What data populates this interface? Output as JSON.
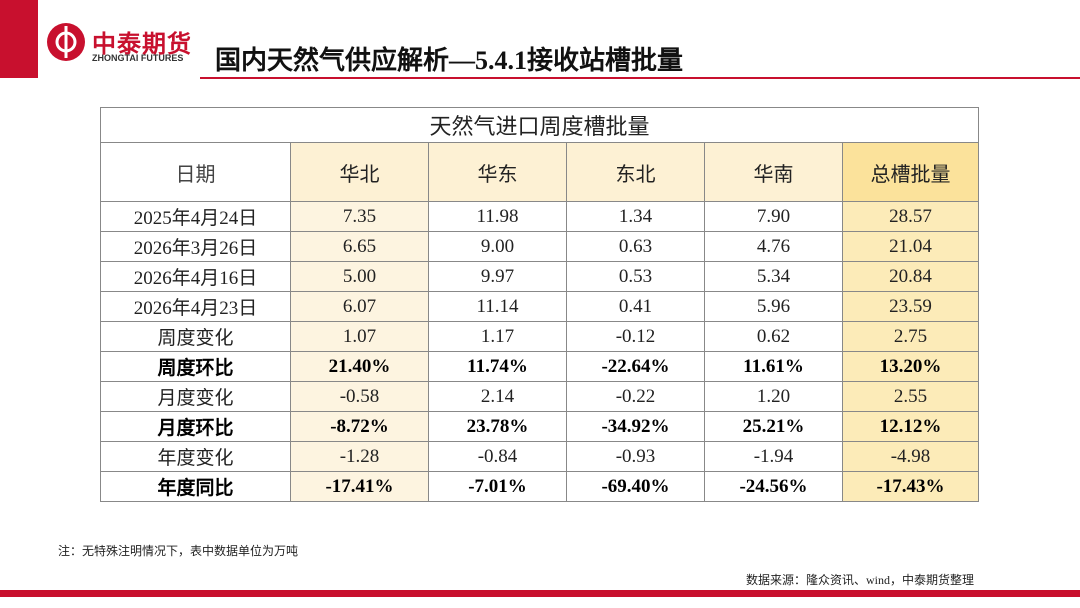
{
  "header": {
    "logo_name": "中泰期货",
    "logo_sub": "ZHONGTAI FUTURES",
    "title": "国内天然气供应解析—5.4.1接收站槽批量"
  },
  "table": {
    "title": "天然气进口周度槽批量",
    "columns": [
      "日期",
      "华北",
      "华东",
      "东北",
      "华南",
      "总槽批量"
    ],
    "rows": [
      [
        "2025年4月24日",
        "7.35",
        "11.98",
        "1.34",
        "7.90",
        "28.57"
      ],
      [
        "2026年3月26日",
        "6.65",
        "9.00",
        "0.63",
        "4.76",
        "21.04"
      ],
      [
        "2026年4月16日",
        "5.00",
        "9.97",
        "0.53",
        "5.34",
        "20.84"
      ],
      [
        "2026年4月23日",
        "6.07",
        "11.14",
        "0.41",
        "5.96",
        "23.59"
      ],
      [
        "周度变化",
        "1.07",
        "1.17",
        "-0.12",
        "0.62",
        "2.75"
      ],
      [
        "周度环比",
        "21.40%",
        "11.74%",
        "-22.64%",
        "11.61%",
        "13.20%"
      ],
      [
        "月度变化",
        "-0.58",
        "2.14",
        "-0.22",
        "1.20",
        "2.55"
      ],
      [
        "月度环比",
        "-8.72%",
        "23.78%",
        "-34.92%",
        "25.21%",
        "12.12%"
      ],
      [
        "年度变化",
        "-1.28",
        "-0.84",
        "-0.93",
        "-1.94",
        "-4.98"
      ],
      [
        "年度同比",
        "-17.41%",
        "-7.01%",
        "-69.40%",
        "-24.56%",
        "-17.43%"
      ]
    ]
  },
  "footer": {
    "note": "注：无特殊注明情况下，表中数据单位为万吨",
    "source": "数据来源：隆众资讯、wind，中泰期货整理"
  }
}
